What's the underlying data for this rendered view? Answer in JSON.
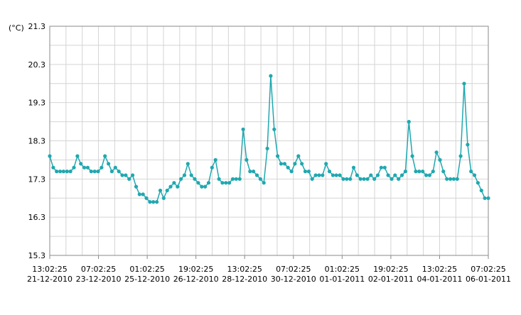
{
  "chart_data": {
    "type": "line",
    "ylabel": "(°C)",
    "ylim": [
      15.3,
      21.3
    ],
    "yticks": [
      "21.3",
      "20.3",
      "19.3",
      "18.3",
      "17.3",
      "16.3",
      "15.3"
    ],
    "xtick_labels": [
      {
        "time": "13:02:25",
        "date": "21-12-2010"
      },
      {
        "time": "07:02:25",
        "date": "23-12-2010"
      },
      {
        "time": "01:02:25",
        "date": "25-12-2010"
      },
      {
        "time": "19:02:25",
        "date": "26-12-2010"
      },
      {
        "time": "13:02:25",
        "date": "28-12-2010"
      },
      {
        "time": "07:02:25",
        "date": "30-12-2010"
      },
      {
        "time": "01:02:25",
        "date": "01-01-2011"
      },
      {
        "time": "19:02:25",
        "date": "02-01-2011"
      },
      {
        "time": "13:02:25",
        "date": "04-01-2011"
      },
      {
        "time": "07:02:25",
        "date": "06-01-2011"
      }
    ],
    "grid": true,
    "colors": {
      "line": "#20a8b0",
      "grid": "#d4d4d4",
      "axis": "#888888"
    },
    "series": [
      {
        "values": [
          17.9,
          17.6,
          17.5,
          17.5,
          17.5,
          17.5,
          17.5,
          17.6,
          17.9,
          17.7,
          17.6,
          17.6,
          17.5,
          17.5,
          17.5,
          17.6,
          17.9,
          17.7,
          17.5,
          17.6,
          17.5,
          17.4,
          17.4,
          17.3,
          17.4,
          17.1,
          16.9,
          16.9,
          16.8,
          16.7,
          16.7,
          16.7,
          17.0,
          16.8,
          17.0,
          17.1,
          17.2,
          17.1,
          17.3,
          17.4,
          17.7,
          17.4,
          17.3,
          17.2,
          17.1,
          17.1,
          17.2,
          17.6,
          17.8,
          17.3,
          17.2,
          17.2,
          17.2,
          17.3,
          17.3,
          17.3,
          18.6,
          17.8,
          17.5,
          17.5,
          17.4,
          17.3,
          17.2,
          18.1,
          20.0,
          18.6,
          17.9,
          17.7,
          17.7,
          17.6,
          17.5,
          17.7,
          17.9,
          17.7,
          17.5,
          17.5,
          17.3,
          17.4,
          17.4,
          17.4,
          17.7,
          17.5,
          17.4,
          17.4,
          17.4,
          17.3,
          17.3,
          17.3,
          17.6,
          17.4,
          17.3,
          17.3,
          17.3,
          17.4,
          17.3,
          17.4,
          17.6,
          17.6,
          17.4,
          17.3,
          17.4,
          17.3,
          17.4,
          17.5,
          18.8,
          17.9,
          17.5,
          17.5,
          17.5,
          17.4,
          17.4,
          17.5,
          18.0,
          17.8,
          17.5,
          17.3,
          17.3,
          17.3,
          17.3,
          17.9,
          19.8,
          18.2,
          17.5,
          17.4,
          17.2,
          17.0,
          16.8,
          16.8
        ]
      }
    ]
  }
}
